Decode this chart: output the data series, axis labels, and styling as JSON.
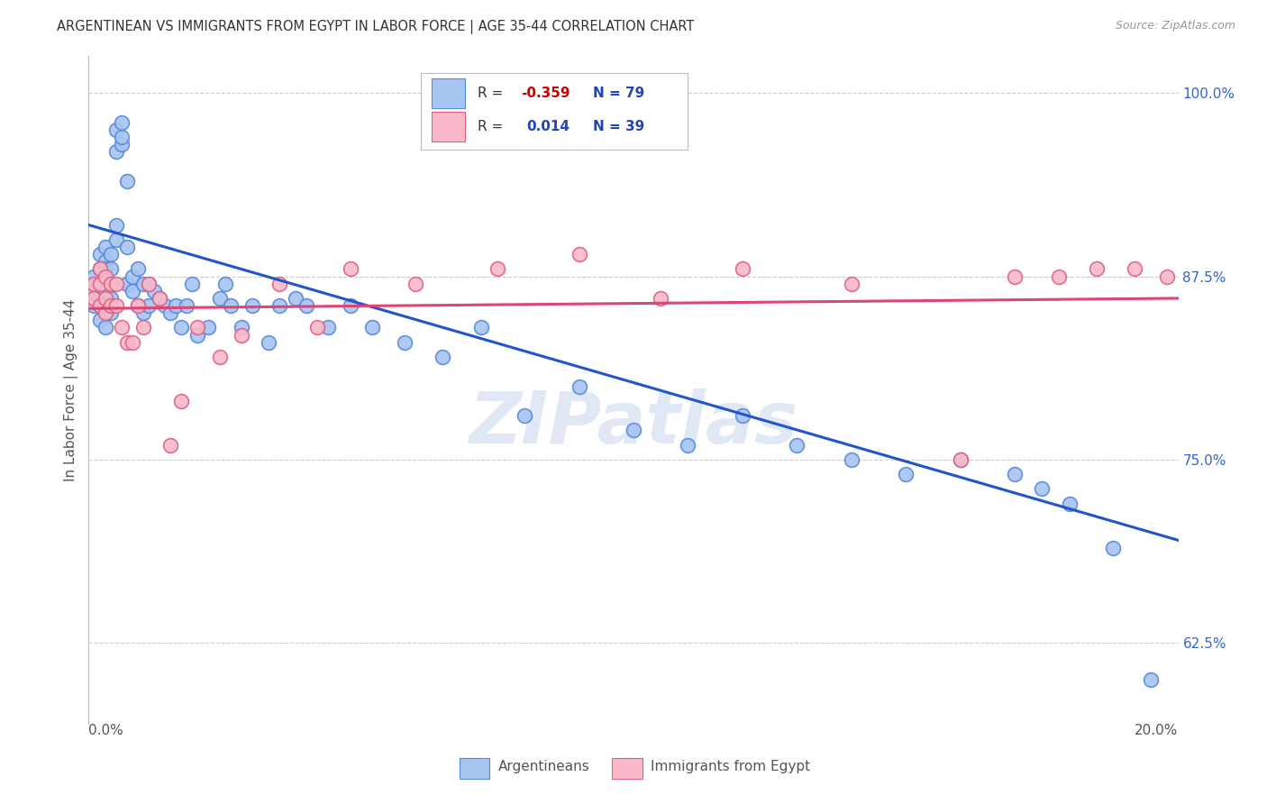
{
  "title": "ARGENTINEAN VS IMMIGRANTS FROM EGYPT IN LABOR FORCE | AGE 35-44 CORRELATION CHART",
  "source": "Source: ZipAtlas.com",
  "ylabel": "In Labor Force | Age 35-44",
  "xmin": 0.0,
  "xmax": 0.2,
  "ymin": 0.57,
  "ymax": 1.025,
  "yticks": [
    0.625,
    0.75,
    0.875,
    1.0
  ],
  "ytick_labels": [
    "62.5%",
    "75.0%",
    "87.5%",
    "100.0%"
  ],
  "blue_fill": "#A8C4F0",
  "blue_edge": "#5588DD",
  "pink_fill": "#F8B8C8",
  "pink_edge": "#E06080",
  "blue_line": "#2255CC",
  "pink_line": "#DD4477",
  "r_color": "#CC0000",
  "n_color": "#2244BB",
  "watermark": "ZIPatlas",
  "argentineans_x": [
    0.001,
    0.001,
    0.001,
    0.001,
    0.002,
    0.002,
    0.002,
    0.002,
    0.002,
    0.002,
    0.003,
    0.003,
    0.003,
    0.003,
    0.003,
    0.003,
    0.003,
    0.004,
    0.004,
    0.004,
    0.004,
    0.004,
    0.005,
    0.005,
    0.005,
    0.005,
    0.006,
    0.006,
    0.006,
    0.007,
    0.007,
    0.007,
    0.008,
    0.008,
    0.009,
    0.009,
    0.01,
    0.01,
    0.011,
    0.011,
    0.012,
    0.013,
    0.014,
    0.015,
    0.016,
    0.017,
    0.018,
    0.019,
    0.02,
    0.022,
    0.024,
    0.025,
    0.026,
    0.028,
    0.03,
    0.033,
    0.035,
    0.038,
    0.04,
    0.044,
    0.048,
    0.052,
    0.058,
    0.065,
    0.072,
    0.08,
    0.09,
    0.1,
    0.11,
    0.12,
    0.13,
    0.14,
    0.15,
    0.16,
    0.17,
    0.175,
    0.18,
    0.188,
    0.195
  ],
  "argentineans_y": [
    0.87,
    0.875,
    0.865,
    0.855,
    0.89,
    0.88,
    0.87,
    0.86,
    0.855,
    0.845,
    0.895,
    0.885,
    0.88,
    0.875,
    0.865,
    0.855,
    0.84,
    0.89,
    0.88,
    0.87,
    0.86,
    0.85,
    0.91,
    0.9,
    0.975,
    0.96,
    0.965,
    0.97,
    0.98,
    0.94,
    0.895,
    0.87,
    0.875,
    0.865,
    0.88,
    0.855,
    0.87,
    0.85,
    0.87,
    0.855,
    0.865,
    0.86,
    0.855,
    0.85,
    0.855,
    0.84,
    0.855,
    0.87,
    0.835,
    0.84,
    0.86,
    0.87,
    0.855,
    0.84,
    0.855,
    0.83,
    0.855,
    0.86,
    0.855,
    0.84,
    0.855,
    0.84,
    0.83,
    0.82,
    0.84,
    0.78,
    0.8,
    0.77,
    0.76,
    0.78,
    0.76,
    0.75,
    0.74,
    0.75,
    0.74,
    0.73,
    0.72,
    0.69,
    0.6
  ],
  "egypt_x": [
    0.001,
    0.001,
    0.002,
    0.002,
    0.002,
    0.003,
    0.003,
    0.003,
    0.004,
    0.004,
    0.005,
    0.005,
    0.006,
    0.007,
    0.008,
    0.009,
    0.01,
    0.011,
    0.013,
    0.015,
    0.017,
    0.02,
    0.024,
    0.028,
    0.035,
    0.042,
    0.048,
    0.06,
    0.075,
    0.09,
    0.105,
    0.12,
    0.14,
    0.16,
    0.17,
    0.178,
    0.185,
    0.192,
    0.198
  ],
  "egypt_y": [
    0.87,
    0.86,
    0.88,
    0.87,
    0.855,
    0.875,
    0.86,
    0.85,
    0.87,
    0.855,
    0.87,
    0.855,
    0.84,
    0.83,
    0.83,
    0.855,
    0.84,
    0.87,
    0.86,
    0.76,
    0.79,
    0.84,
    0.82,
    0.835,
    0.87,
    0.84,
    0.88,
    0.87,
    0.88,
    0.89,
    0.86,
    0.88,
    0.87,
    0.75,
    0.875,
    0.875,
    0.88,
    0.88,
    0.875
  ],
  "blue_trend_x": [
    0.0,
    0.2
  ],
  "blue_trend_y": [
    0.91,
    0.695
  ],
  "pink_trend_x": [
    0.0,
    0.2
  ],
  "pink_trend_y": [
    0.853,
    0.86
  ]
}
